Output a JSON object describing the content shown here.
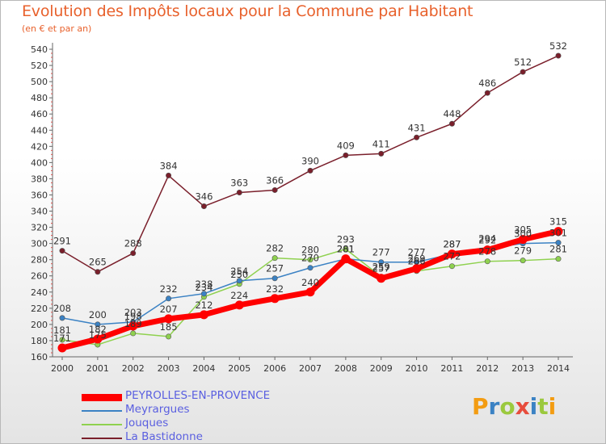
{
  "header": {
    "title": "Evolution des Impôts locaux pour la Commune par Habitant",
    "subtitle": "(en € et par an)"
  },
  "logo": {
    "letters": [
      "P",
      "r",
      "o",
      "x",
      "i",
      "t",
      "i"
    ],
    "colors": [
      "#f39c12",
      "#3b82c4",
      "#9bc93e",
      "#e74c3c",
      "#3b82c4",
      "#9bc93e",
      "#f39c12"
    ]
  },
  "chart_data": {
    "type": "line",
    "x": [
      2000,
      2001,
      2002,
      2003,
      2004,
      2005,
      2006,
      2007,
      2008,
      2009,
      2010,
      2011,
      2012,
      2013,
      2014
    ],
    "ylim": [
      160,
      540
    ],
    "yticks": [
      160,
      180,
      200,
      220,
      240,
      260,
      280,
      300,
      320,
      340,
      360,
      380,
      400,
      420,
      440,
      460,
      480,
      500,
      520,
      540
    ],
    "grid": false,
    "legend_position": "bottom-left",
    "series": [
      {
        "name": "PEYROLLES-EN-PROVENCE",
        "color": "#ff0000",
        "values": [
          171,
          182,
          198,
          207,
          212,
          224,
          232,
          240,
          281,
          257,
          269,
          287,
          292,
          305,
          315
        ],
        "labels": [
          "171",
          "182",
          "198",
          "207",
          "212",
          "224",
          "232",
          "240",
          "281",
          "257",
          "269",
          "287",
          "292",
          "305",
          "315"
        ]
      },
      {
        "name": "Meyrargues",
        "color": "#3b82c4",
        "values": [
          208,
          200,
          203,
          232,
          238,
          254,
          257,
          270,
          281,
          277,
          277,
          287,
          294,
          300,
          301
        ],
        "labels": [
          "208",
          "200",
          "203",
          "232",
          "238",
          "254",
          "257",
          "270",
          "281",
          "277",
          "277",
          "287",
          "294",
          "300",
          "301"
        ]
      },
      {
        "name": "Jouques",
        "color": "#8fd14f",
        "values": [
          181,
          175,
          189,
          185,
          234,
          250,
          282,
          280,
          293,
          259,
          266,
          272,
          278,
          279,
          281
        ],
        "labels": [
          "181",
          "175",
          "189",
          "185",
          "234",
          "250",
          "282",
          "280",
          "293",
          "259",
          "266",
          "272",
          "278",
          "279",
          "281"
        ]
      },
      {
        "name": "La Bastidonne",
        "color": "#7a1f2b",
        "values": [
          291,
          265,
          288,
          384,
          346,
          363,
          366,
          390,
          409,
          411,
          431,
          448,
          486,
          512,
          532
        ],
        "labels": [
          "291",
          "265",
          "288",
          "384",
          "346",
          "363",
          "366",
          "390",
          "409",
          "411",
          "431",
          "448",
          "486",
          "512",
          "532"
        ]
      }
    ]
  }
}
